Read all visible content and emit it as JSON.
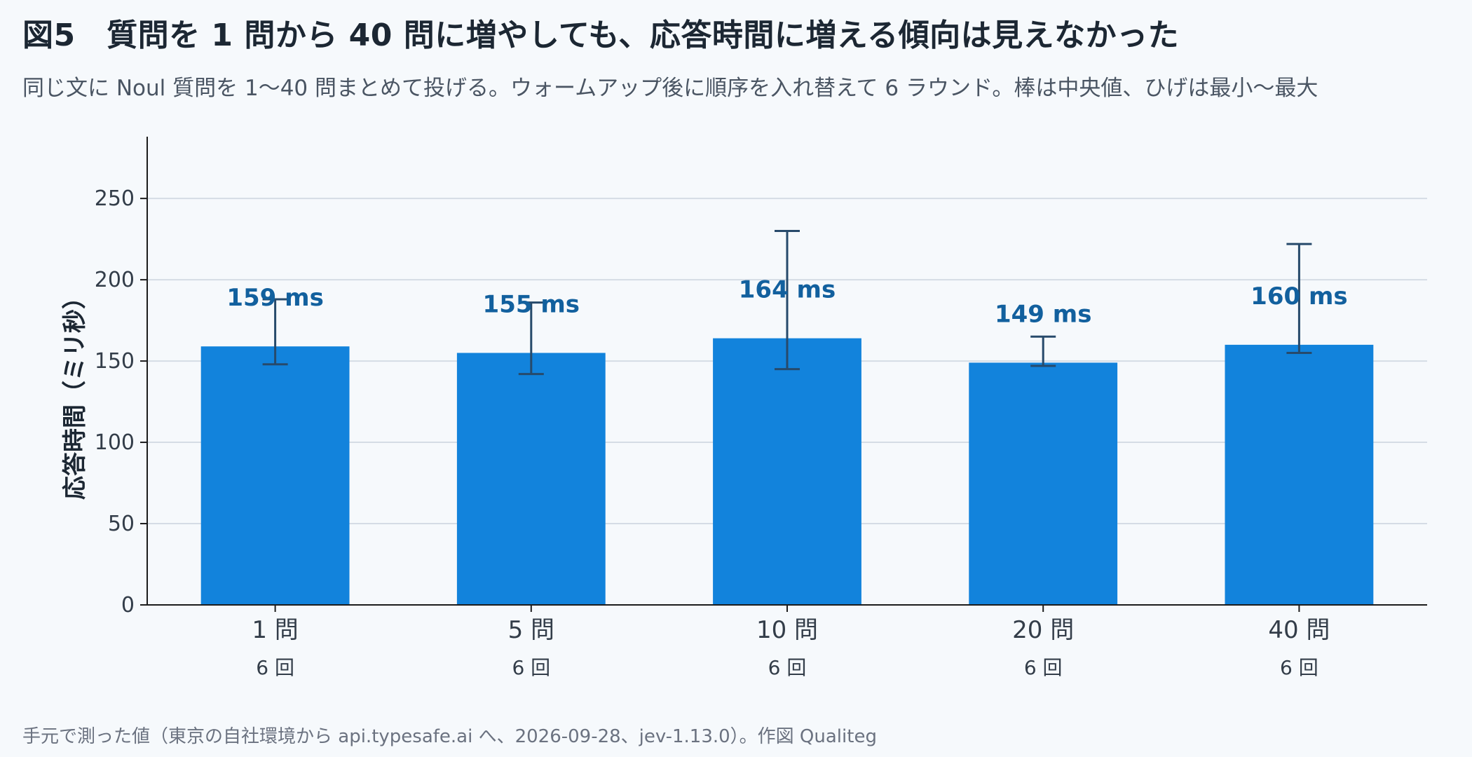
{
  "header": {
    "title": "図5　質問を 1 問から 40 問に増やしても、応答時間に増える傾向は見えなかった",
    "subtitle": "同じ文に Noul 質問を 1〜40 問まとめて投げる。ウォームアップ後に順序を入れ替えて 6 ラウンド。棒は中央値、ひげは最小〜最大"
  },
  "footer": {
    "note": "手元で測った値（東京の自社環境から api.typesafe.ai へ、2026-09-28、jev-1.13.0）。作図 Qualiteg"
  },
  "chart_data": {
    "type": "bar",
    "categories": [
      "1 問",
      "5 問",
      "10 問",
      "20 問",
      "40 問"
    ],
    "counts": [
      "6 回",
      "6 回",
      "6 回",
      "6 回",
      "6 回"
    ],
    "series": [
      {
        "values": [
          159,
          155,
          164,
          149,
          160
        ],
        "min": [
          148,
          142,
          145,
          147,
          155
        ],
        "max": [
          188,
          186,
          230,
          165,
          222
        ]
      }
    ],
    "value_labels": [
      "159 ms",
      "155 ms",
      "164 ms",
      "149 ms",
      "160 ms"
    ],
    "xlabel": "",
    "ylabel": "応答時間（ミリ秒）",
    "ylim": [
      0,
      288
    ],
    "yticks": [
      0,
      50,
      100,
      150,
      200,
      250
    ],
    "grid": true,
    "bar_color": "#1283dc",
    "errorbar_color": "#274a6b",
    "value_label_color": "#12609e",
    "grid_color": "#d5dce5"
  }
}
